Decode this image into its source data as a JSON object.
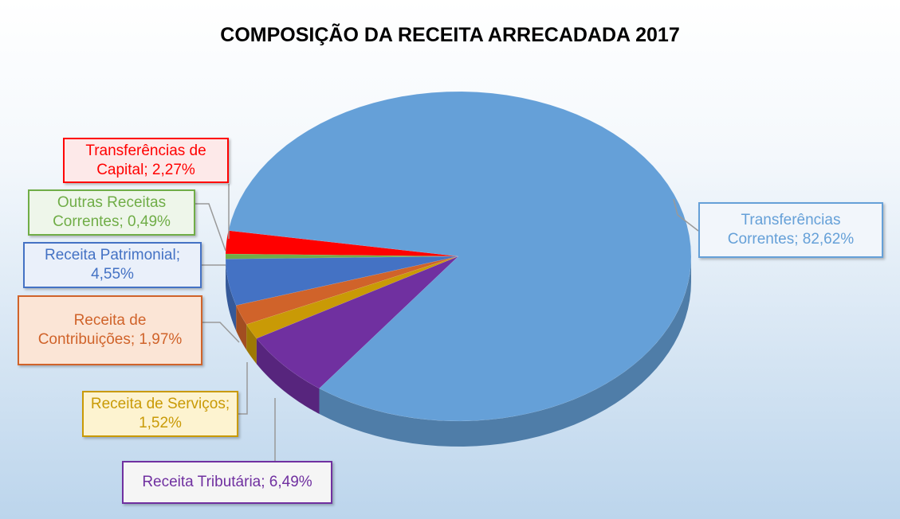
{
  "chart_data": {
    "type": "pie",
    "title": "COMPOSIÇÃO DA RECEITA ARRECADADA 2017",
    "values": [
      2.27,
      0.49,
      4.55,
      1.97,
      1.52,
      6.49,
      82.62
    ],
    "value_labels": [
      "Transferências de Capital; 2,27%",
      "Outras Receitas Correntes; 0,49%",
      "Receita Patrimonial; 4,55%",
      "Receita de Contribuições; 1,97%",
      "Receita de Serviços; 1,52%",
      "Receita Tributária; 6,49%",
      "Transferências Correntes; 82,62%"
    ],
    "colors": [
      "#ff0000",
      "#70ad47",
      "#4472c4",
      "#d0632a",
      "#c99a06",
      "#7030a0",
      "#65a0d8"
    ]
  }
}
